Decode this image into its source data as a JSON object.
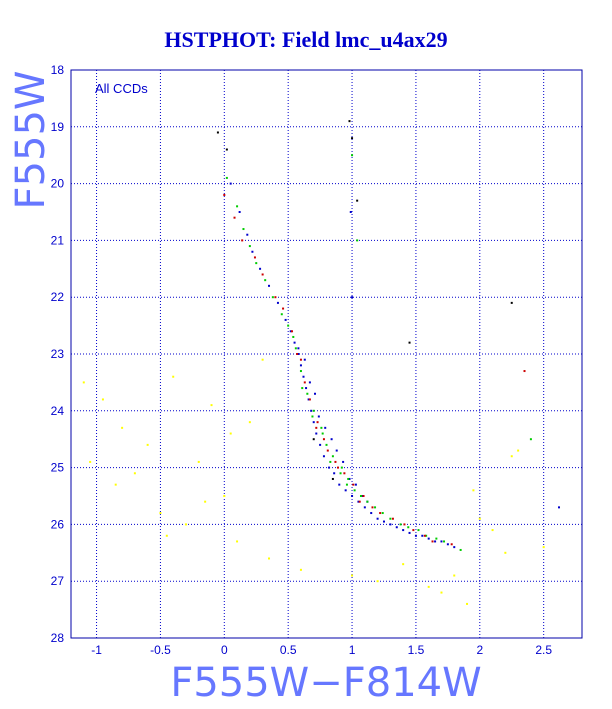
{
  "chart_data": {
    "type": "scatter",
    "title": "HSTPHOT: Field lmc_u4ax29",
    "xlabel": "F555W−F814W",
    "ylabel": "F555W",
    "annotation": "All CCDs",
    "xlim": [
      -1.2,
      2.8
    ],
    "ylim": [
      28,
      18
    ],
    "y_inverted": true,
    "grid": true,
    "x_ticks": [
      -1,
      -0.5,
      0,
      0.5,
      1,
      1.5,
      2,
      2.5
    ],
    "y_ticks": [
      18,
      19,
      20,
      21,
      22,
      23,
      24,
      25,
      26,
      27,
      28
    ],
    "x_tick_labels": [
      "-1",
      "-0.5",
      "0",
      "0.5",
      "1",
      "1.5",
      "2",
      "2.5"
    ],
    "y_tick_labels": [
      "18",
      "19",
      "20",
      "21",
      "22",
      "23",
      "24",
      "25",
      "26",
      "27",
      "28"
    ],
    "series": [
      {
        "color": "#0000cc",
        "x": [
          0.05,
          0.12,
          0.18,
          0.22,
          0.28,
          0.35,
          0.42,
          0.48,
          0.52,
          0.55,
          0.58,
          0.6,
          0.62,
          0.64,
          0.66,
          0.68,
          0.7,
          0.72,
          0.75,
          0.78,
          0.82,
          0.86,
          0.9,
          0.95,
          1.0,
          1.05,
          1.1,
          1.15,
          1.2,
          1.25,
          1.3,
          1.35,
          1.4,
          1.45,
          1.5,
          1.55,
          1.6,
          1.65,
          1.7,
          1.75,
          1.8,
          0.58,
          0.63,
          0.67,
          0.71,
          0.74,
          0.79,
          0.84,
          0.88,
          0.93,
          0.98,
          1.03,
          1.08,
          1.12,
          0.99,
          1.0,
          2.62
        ],
        "y": [
          20.0,
          20.5,
          20.9,
          21.2,
          21.5,
          21.8,
          22.1,
          22.4,
          22.6,
          22.8,
          23.0,
          23.2,
          23.4,
          23.6,
          23.8,
          24.0,
          24.2,
          24.4,
          24.6,
          24.8,
          25.0,
          25.1,
          25.3,
          25.4,
          25.5,
          25.6,
          25.7,
          25.8,
          25.9,
          25.95,
          26.0,
          26.05,
          26.1,
          26.15,
          26.2,
          26.2,
          26.25,
          26.3,
          26.3,
          26.35,
          26.4,
          22.9,
          23.1,
          23.5,
          23.7,
          24.1,
          24.3,
          24.5,
          24.7,
          24.9,
          25.2,
          25.3,
          25.5,
          25.6,
          20.5,
          22.0,
          25.7
        ]
      },
      {
        "color": "#00cc00",
        "x": [
          0.02,
          0.1,
          0.15,
          0.2,
          0.25,
          0.32,
          0.38,
          0.45,
          0.5,
          0.56,
          0.6,
          0.65,
          0.7,
          0.76,
          0.8,
          0.85,
          0.92,
          0.97,
          1.02,
          1.07,
          1.12,
          1.18,
          1.24,
          1.3,
          1.38,
          1.44,
          1.52,
          1.58,
          1.66,
          1.72,
          1.85,
          0.54,
          0.61,
          0.69,
          0.77,
          0.83,
          0.91,
          0.96,
          1.0,
          1.04,
          2.4
        ],
        "y": [
          19.9,
          20.4,
          20.8,
          21.1,
          21.4,
          21.7,
          22.0,
          22.3,
          22.5,
          22.9,
          23.3,
          23.7,
          24.0,
          24.3,
          24.6,
          24.8,
          25.0,
          25.2,
          25.4,
          25.5,
          25.6,
          25.7,
          25.8,
          25.9,
          26.0,
          26.05,
          26.1,
          26.2,
          26.25,
          26.3,
          26.45,
          22.7,
          23.6,
          24.1,
          24.4,
          24.9,
          25.1,
          25.3,
          19.5,
          21.0,
          24.5
        ]
      },
      {
        "color": "#cc0000",
        "x": [
          0.0,
          0.08,
          0.14,
          0.24,
          0.3,
          0.4,
          0.46,
          0.53,
          0.57,
          0.63,
          0.67,
          0.73,
          0.78,
          0.87,
          0.94,
          1.01,
          1.09,
          1.16,
          1.22,
          1.32,
          1.41,
          1.48,
          1.57,
          1.63,
          1.78,
          0.6,
          0.72,
          0.81,
          0.89,
          1.06,
          2.35
        ],
        "y": [
          20.2,
          20.6,
          21.0,
          21.3,
          21.6,
          22.0,
          22.2,
          22.6,
          23.0,
          23.5,
          23.8,
          24.2,
          24.5,
          24.9,
          25.1,
          25.3,
          25.5,
          25.7,
          25.8,
          25.9,
          26.0,
          26.1,
          26.2,
          26.3,
          26.35,
          23.1,
          24.3,
          24.7,
          25.0,
          25.6,
          23.3
        ]
      },
      {
        "color": "#ffff00",
        "x": [
          -1.1,
          -0.95,
          -0.8,
          -0.7,
          -0.6,
          -0.5,
          -0.4,
          -0.3,
          -0.2,
          -0.1,
          0.0,
          0.1,
          0.2,
          0.3,
          0.35,
          0.6,
          1.0,
          1.2,
          1.4,
          1.6,
          1.8,
          1.9,
          2.0,
          2.1,
          2.2,
          2.3,
          2.5,
          -1.05,
          -0.85,
          -0.45,
          -0.15,
          0.05,
          1.7,
          1.95,
          2.25
        ],
        "y": [
          23.5,
          23.8,
          24.3,
          25.1,
          24.6,
          25.8,
          23.4,
          26.0,
          24.9,
          23.9,
          25.5,
          26.3,
          24.2,
          23.1,
          26.6,
          26.8,
          26.9,
          27.0,
          26.7,
          27.1,
          26.9,
          27.4,
          25.9,
          26.1,
          26.5,
          24.7,
          26.4,
          24.9,
          25.3,
          26.2,
          25.6,
          24.4,
          27.2,
          25.4,
          24.8
        ]
      },
      {
        "color": "#000000",
        "x": [
          -0.05,
          0.02,
          0.98,
          1.0,
          1.04,
          2.25,
          1.45,
          0.7,
          0.85
        ],
        "y": [
          19.1,
          19.4,
          18.9,
          19.2,
          20.3,
          22.1,
          22.8,
          24.5,
          25.2
        ]
      }
    ]
  }
}
